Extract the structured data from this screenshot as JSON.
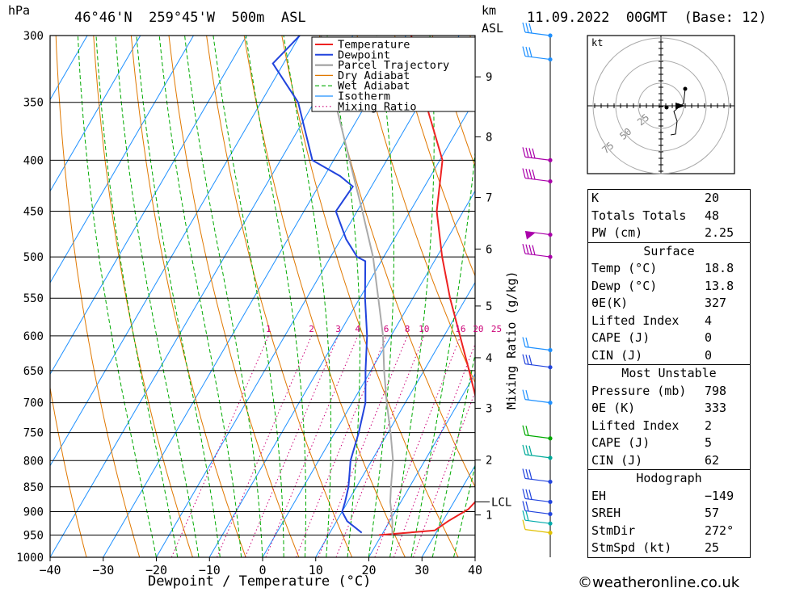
{
  "header": {
    "location": "46°46'N  259°45'W  500m  ASL",
    "datetime": "11.09.2022  00GMT  (Base: 12)",
    "p_unit": "hPa",
    "km_unit": "km",
    "asl_unit": "ASL"
  },
  "chart_data": {
    "type": "line",
    "subtype": "skew-t log-p",
    "xlabel": "Dewpoint / Temperature (°C)",
    "ylabel": "",
    "xlim": [
      -40,
      40
    ],
    "ylim_hpa": [
      1000,
      300
    ],
    "pressure_ticks": [
      300,
      350,
      400,
      450,
      500,
      550,
      600,
      650,
      700,
      750,
      800,
      850,
      900,
      950,
      1000
    ],
    "temp_ticks": [
      "−40",
      "−30",
      "−20",
      "−10",
      "0",
      "10",
      "20",
      "30",
      "40"
    ],
    "altitude_ticks": [
      {
        "km": "1",
        "p": 907
      },
      {
        "km": "2",
        "p": 799
      },
      {
        "km": "3",
        "p": 709
      },
      {
        "km": "4",
        "p": 631
      },
      {
        "km": "5",
        "p": 560
      },
      {
        "km": "6",
        "p": 491
      },
      {
        "km": "7",
        "p": 436
      },
      {
        "km": "8",
        "p": 379
      },
      {
        "km": "9",
        "p": 330
      }
    ],
    "lcl": {
      "label": "LCL",
      "p": 880
    },
    "mixing_ratio_label": "Mixing Ratio (g/kg)",
    "mixing_ratios": [
      "1",
      "2",
      "3",
      "4",
      "6",
      "8",
      "10",
      "16",
      "20",
      "25"
    ],
    "series": [
      {
        "name": "Temperature",
        "color": "#ee2222",
        "points": [
          [
            950,
            19.5
          ],
          [
            940,
            29.5
          ],
          [
            920,
            31
          ],
          [
            895,
            33.5
          ],
          [
            880,
            34
          ],
          [
            850,
            33.5
          ],
          [
            800,
            31.5
          ],
          [
            750,
            27.5
          ],
          [
            700,
            23.5
          ],
          [
            650,
            18.5
          ],
          [
            600,
            13
          ],
          [
            550,
            7
          ],
          [
            500,
            1
          ],
          [
            450,
            -5
          ],
          [
            400,
            -9.5
          ],
          [
            350,
            -19
          ],
          [
            300,
            -29
          ]
        ]
      },
      {
        "name": "Dewpoint",
        "color": "#2244dd",
        "points": [
          [
            945,
            16
          ],
          [
            920,
            12
          ],
          [
            900,
            10
          ],
          [
            880,
            9.5
          ],
          [
            850,
            8.5
          ],
          [
            800,
            6
          ],
          [
            750,
            4.5
          ],
          [
            700,
            2.5
          ],
          [
            650,
            -1
          ],
          [
            600,
            -4.5
          ],
          [
            550,
            -9
          ],
          [
            505,
            -13
          ],
          [
            500,
            -15
          ],
          [
            480,
            -19
          ],
          [
            450,
            -24
          ],
          [
            425,
            -23.5
          ],
          [
            415,
            -27
          ],
          [
            400,
            -34
          ],
          [
            350,
            -43
          ],
          [
            320,
            -52
          ],
          [
            300,
            -50
          ]
        ]
      },
      {
        "name": "Parcel Trajectory",
        "color": "#aaaaaa",
        "points": [
          [
            950,
            22
          ],
          [
            920,
            20.5
          ],
          [
            880,
            18
          ],
          [
            850,
            16.5
          ],
          [
            800,
            14
          ],
          [
            750,
            10.5
          ],
          [
            700,
            6.5
          ],
          [
            650,
            2.5
          ],
          [
            600,
            -1.5
          ],
          [
            550,
            -6.5
          ],
          [
            500,
            -12
          ],
          [
            450,
            -19
          ],
          [
            400,
            -27
          ],
          [
            350,
            -36
          ],
          [
            300,
            -46
          ]
        ]
      }
    ],
    "legend": [
      "Temperature",
      "Dewpoint",
      "Parcel Trajectory",
      "Dry Adiabat",
      "Wet Adiabat",
      "Isotherm",
      "Mixing Ratio"
    ],
    "legend_colors": [
      "#ee2222",
      "#2244dd",
      "#999999",
      "#e07800",
      "#00aa00",
      "#1e90ff",
      "#cc0077"
    ],
    "legend_placement": "top-right"
  },
  "hodograph": {
    "unit": "kt",
    "rings": [
      "25",
      "50",
      "75"
    ]
  },
  "indices": [
    {
      "label": "K",
      "value": "20"
    },
    {
      "label": "Totals Totals",
      "value": "48"
    },
    {
      "label": "PW (cm)",
      "value": "2.25"
    }
  ],
  "surface": {
    "title": "Surface",
    "rows": [
      {
        "label": "Temp (°C)",
        "value": "18.8"
      },
      {
        "label": "Dewp (°C)",
        "value": "13.8"
      },
      {
        "label": "θE(K)",
        "value": "327"
      },
      {
        "label": "Lifted Index",
        "value": "4"
      },
      {
        "label": "CAPE (J)",
        "value": "0"
      },
      {
        "label": "CIN (J)",
        "value": "0"
      }
    ]
  },
  "most_unstable": {
    "title": "Most Unstable",
    "rows": [
      {
        "label": "Pressure (mb)",
        "value": "798"
      },
      {
        "label": "θE (K)",
        "value": "333"
      },
      {
        "label": "Lifted Index",
        "value": "2"
      },
      {
        "label": "CAPE (J)",
        "value": "5"
      },
      {
        "label": "CIN (J)",
        "value": "62"
      }
    ]
  },
  "hodograph_stats": {
    "title": "Hodograph",
    "rows": [
      {
        "label": "EH",
        "value": "−149"
      },
      {
        "label": "SREH",
        "value": "57"
      },
      {
        "label": "StmDir",
        "value": "272°"
      },
      {
        "label": "StmSpd (kt)",
        "value": "25"
      }
    ]
  },
  "credit": "©weatheronline.co.uk"
}
